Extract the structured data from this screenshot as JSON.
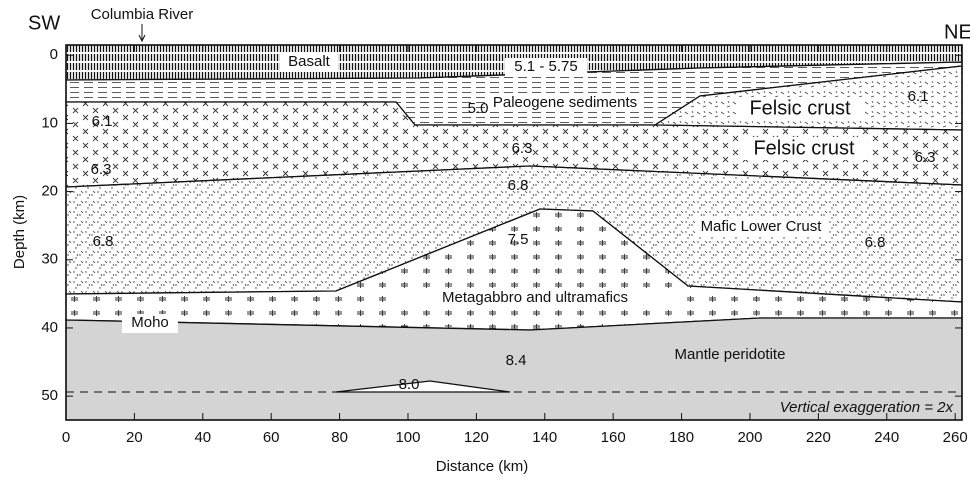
{
  "header": {
    "left": "SW",
    "right": "NE",
    "river": "Columbia River"
  },
  "axes": {
    "x": {
      "label": "Distance (km)",
      "lim": [
        0,
        262
      ],
      "ticks": [
        0,
        20,
        40,
        60,
        80,
        100,
        120,
        140,
        160,
        180,
        200,
        220,
        240,
        260
      ]
    },
    "y": {
      "label": "Depth (km)",
      "lim": [
        -1.5,
        53.5
      ],
      "ticks": [
        0,
        10,
        20,
        30,
        40,
        50
      ]
    }
  },
  "labels": [
    "Basalt",
    "5.1 - 5.75",
    "Paleogene sediments",
    "5.0",
    "Felsic crust",
    "6.1",
    "6.1",
    "Felsic crust",
    "6.3",
    "6.3",
    "6.3",
    "6.8",
    "6.8",
    "6.8",
    "Mafic Lower Crust",
    "7.5",
    "Metagabbro and ultramafics",
    "Moho",
    "8.4",
    "Mantle peridotite",
    "8.0",
    "Vertical exaggeration = 2x"
  ]
}
